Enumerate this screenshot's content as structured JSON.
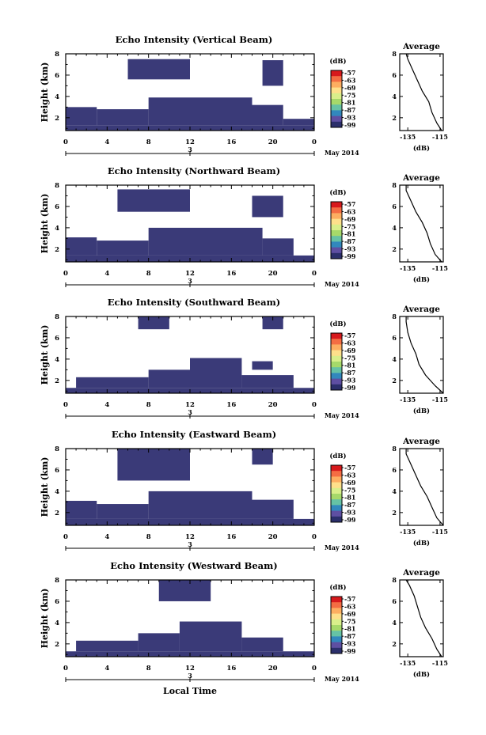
{
  "chart_data": [
    {
      "type": "heatmap",
      "title": "Echo Intensity (Vertical Beam)",
      "ylabel": "Height (km)",
      "xlabel": "",
      "date_label": "May 2014",
      "x_ticks": [
        "0",
        "4",
        "8",
        "12",
        "16",
        "20",
        "0"
      ],
      "x_sub_tick": "3",
      "y_ticks": [
        "2",
        "4",
        "6",
        "8"
      ],
      "xlim": [
        0,
        24
      ],
      "ylim": [
        0.8,
        8.0
      ],
      "colorbar": {
        "unit": "(dB)",
        "labels": [
          "-57",
          "-63",
          "-69",
          "-75",
          "-81",
          "-87",
          "-93",
          "-99"
        ]
      },
      "echo_regions": [
        {
          "t0": 0,
          "t1": 24,
          "h0": 0.8,
          "h1": 1.3
        },
        {
          "t0": 0,
          "t1": 3,
          "h0": 1.3,
          "h1": 3.0
        },
        {
          "t0": 3,
          "t1": 8,
          "h0": 1.3,
          "h1": 2.8
        },
        {
          "t0": 8,
          "t1": 18,
          "h0": 1.3,
          "h1": 3.9
        },
        {
          "t0": 18,
          "t1": 21,
          "h0": 1.3,
          "h1": 3.2
        },
        {
          "t0": 21,
          "t1": 24,
          "h0": 1.3,
          "h1": 1.9
        },
        {
          "t0": 6,
          "t1": 12,
          "h0": 5.6,
          "h1": 7.5
        },
        {
          "t0": 19,
          "t1": 21,
          "h0": 5.0,
          "h1": 7.4
        }
      ],
      "average": {
        "title": "Average",
        "xlabel": "(dB)",
        "x_ticks": [
          "-135",
          "-115"
        ],
        "y_ticks": [
          "2",
          "4",
          "6",
          "8"
        ],
        "heights": [
          0.8,
          1.5,
          2.5,
          3.5,
          4.5,
          5.5,
          6.5,
          7.5,
          8.0
        ],
        "values": [
          -114,
          -117,
          -120,
          -122,
          -126,
          -129,
          -132,
          -135,
          -136
        ]
      }
    },
    {
      "type": "heatmap",
      "title": "Echo Intensity (Northward Beam)",
      "ylabel": "Height (km)",
      "xlabel": "",
      "date_label": "May 2014",
      "x_ticks": [
        "0",
        "4",
        "8",
        "12",
        "16",
        "20",
        "0"
      ],
      "x_sub_tick": "3",
      "y_ticks": [
        "2",
        "4",
        "6",
        "8"
      ],
      "xlim": [
        0,
        24
      ],
      "ylim": [
        0.8,
        8.0
      ],
      "colorbar": {
        "unit": "(dB)",
        "labels": [
          "-57",
          "-63",
          "-69",
          "-75",
          "-81",
          "-87",
          "-93",
          "-99"
        ]
      },
      "echo_regions": [
        {
          "t0": 0,
          "t1": 24,
          "h0": 0.8,
          "h1": 1.4
        },
        {
          "t0": 0,
          "t1": 3,
          "h0": 1.4,
          "h1": 3.1
        },
        {
          "t0": 3,
          "t1": 8,
          "h0": 1.4,
          "h1": 2.8
        },
        {
          "t0": 8,
          "t1": 19,
          "h0": 1.4,
          "h1": 4.0
        },
        {
          "t0": 19,
          "t1": 22,
          "h0": 1.4,
          "h1": 3.0
        },
        {
          "t0": 5,
          "t1": 12,
          "h0": 5.5,
          "h1": 7.6
        },
        {
          "t0": 18,
          "t1": 21,
          "h0": 5.0,
          "h1": 7.0
        }
      ],
      "average": {
        "title": "Average",
        "xlabel": "(dB)",
        "x_ticks": [
          "-135",
          "-115"
        ],
        "y_ticks": [
          "2",
          "4",
          "6",
          "8"
        ],
        "heights": [
          0.8,
          1.5,
          2.5,
          3.5,
          4.5,
          5.5,
          6.5,
          7.5,
          8.0
        ],
        "values": [
          -114,
          -118,
          -121,
          -123,
          -126,
          -130,
          -133,
          -136,
          -136
        ]
      }
    },
    {
      "type": "heatmap",
      "title": "Echo Intensity (Southward Beam)",
      "ylabel": "Height (km)",
      "xlabel": "",
      "date_label": "May 2014",
      "x_ticks": [
        "0",
        "4",
        "8",
        "12",
        "16",
        "20",
        "0"
      ],
      "x_sub_tick": "3",
      "y_ticks": [
        "2",
        "4",
        "6",
        "8"
      ],
      "xlim": [
        0,
        24
      ],
      "ylim": [
        0.8,
        8.0
      ],
      "colorbar": {
        "unit": "(dB)",
        "labels": [
          "-57",
          "-63",
          "-69",
          "-75",
          "-81",
          "-87",
          "-93",
          "-99"
        ]
      },
      "echo_regions": [
        {
          "t0": 0,
          "t1": 24,
          "h0": 0.8,
          "h1": 1.3
        },
        {
          "t0": 1,
          "t1": 8,
          "h0": 1.3,
          "h1": 2.3
        },
        {
          "t0": 8,
          "t1": 12,
          "h0": 1.3,
          "h1": 3.0
        },
        {
          "t0": 12,
          "t1": 17,
          "h0": 1.3,
          "h1": 4.1
        },
        {
          "t0": 17,
          "t1": 22,
          "h0": 1.3,
          "h1": 2.5
        },
        {
          "t0": 18,
          "t1": 20,
          "h0": 3.0,
          "h1": 3.8
        },
        {
          "t0": 7,
          "t1": 10,
          "h0": 6.8,
          "h1": 8.0
        },
        {
          "t0": 19,
          "t1": 21,
          "h0": 6.8,
          "h1": 8.0
        }
      ],
      "average": {
        "title": "Average",
        "xlabel": "(dB)",
        "x_ticks": [
          "-135",
          "-115"
        ],
        "y_ticks": [
          "2",
          "4",
          "6",
          "8"
        ],
        "heights": [
          0.8,
          1.5,
          2.5,
          3.5,
          4.5,
          5.5,
          6.5,
          7.5,
          8.0
        ],
        "values": [
          -113,
          -118,
          -124,
          -128,
          -130,
          -133,
          -135,
          -136,
          -136
        ]
      }
    },
    {
      "type": "heatmap",
      "title": "Echo Intensity (Eastward Beam)",
      "ylabel": "Height (km)",
      "xlabel": "",
      "date_label": "May 2014",
      "x_ticks": [
        "0",
        "4",
        "8",
        "12",
        "16",
        "20",
        "0"
      ],
      "x_sub_tick": "3",
      "y_ticks": [
        "2",
        "4",
        "6",
        "8"
      ],
      "xlim": [
        0,
        24
      ],
      "ylim": [
        0.8,
        8.0
      ],
      "colorbar": {
        "unit": "(dB)",
        "labels": [
          "-57",
          "-63",
          "-69",
          "-75",
          "-81",
          "-87",
          "-93",
          "-99"
        ]
      },
      "echo_regions": [
        {
          "t0": 0,
          "t1": 24,
          "h0": 0.8,
          "h1": 1.4
        },
        {
          "t0": 0,
          "t1": 3,
          "h0": 1.4,
          "h1": 3.1
        },
        {
          "t0": 3,
          "t1": 8,
          "h0": 1.4,
          "h1": 2.8
        },
        {
          "t0": 8,
          "t1": 18,
          "h0": 1.4,
          "h1": 4.0
        },
        {
          "t0": 18,
          "t1": 22,
          "h0": 1.4,
          "h1": 3.2
        },
        {
          "t0": 5,
          "t1": 12,
          "h0": 5.0,
          "h1": 8.0
        },
        {
          "t0": 18,
          "t1": 20,
          "h0": 6.5,
          "h1": 8.0
        }
      ],
      "average": {
        "title": "Average",
        "xlabel": "(dB)",
        "x_ticks": [
          "-135",
          "-115"
        ],
        "y_ticks": [
          "2",
          "4",
          "6",
          "8"
        ],
        "heights": [
          0.8,
          1.5,
          2.5,
          3.5,
          4.5,
          5.5,
          6.5,
          7.5,
          8.0
        ],
        "values": [
          -113,
          -117,
          -120,
          -123,
          -127,
          -130,
          -133,
          -136,
          -136
        ]
      }
    },
    {
      "type": "heatmap",
      "title": "Echo Intensity (Westward Beam)",
      "ylabel": "Height (km)",
      "xlabel": "Local Time",
      "date_label": "May 2014",
      "x_ticks": [
        "0",
        "4",
        "8",
        "12",
        "16",
        "20",
        "0"
      ],
      "x_sub_tick": "3",
      "y_ticks": [
        "2",
        "4",
        "6",
        "8"
      ],
      "xlim": [
        0,
        24
      ],
      "ylim": [
        0.8,
        8.0
      ],
      "colorbar": {
        "unit": "(dB)",
        "labels": [
          "-57",
          "-63",
          "-69",
          "-75",
          "-81",
          "-87",
          "-93",
          "-99"
        ]
      },
      "echo_regions": [
        {
          "t0": 0,
          "t1": 24,
          "h0": 0.8,
          "h1": 1.3
        },
        {
          "t0": 1,
          "t1": 7,
          "h0": 1.3,
          "h1": 2.3
        },
        {
          "t0": 7,
          "t1": 11,
          "h0": 1.3,
          "h1": 3.0
        },
        {
          "t0": 11,
          "t1": 17,
          "h0": 1.3,
          "h1": 4.1
        },
        {
          "t0": 17,
          "t1": 21,
          "h0": 1.3,
          "h1": 2.6
        },
        {
          "t0": 9,
          "t1": 14,
          "h0": 6.0,
          "h1": 8.0
        }
      ],
      "average": {
        "title": "Average",
        "xlabel": "(dB)",
        "x_ticks": [
          "-135",
          "-115"
        ],
        "y_ticks": [
          "2",
          "4",
          "6",
          "8"
        ],
        "heights": [
          0.8,
          1.5,
          2.5,
          3.5,
          4.5,
          5.5,
          6.5,
          7.5,
          8.0
        ],
        "values": [
          -114,
          -117,
          -120,
          -124,
          -127,
          -129,
          -131,
          -134,
          -136
        ]
      }
    }
  ],
  "style": {
    "echo_color": "#3a3a78",
    "colormap": [
      "#d7191c",
      "#f46d43",
      "#fdae61",
      "#fee08b",
      "#d9ef8b",
      "#a6d96a",
      "#66c2a5",
      "#3288bd",
      "#5e4fa2",
      "#2b2f6b"
    ]
  }
}
